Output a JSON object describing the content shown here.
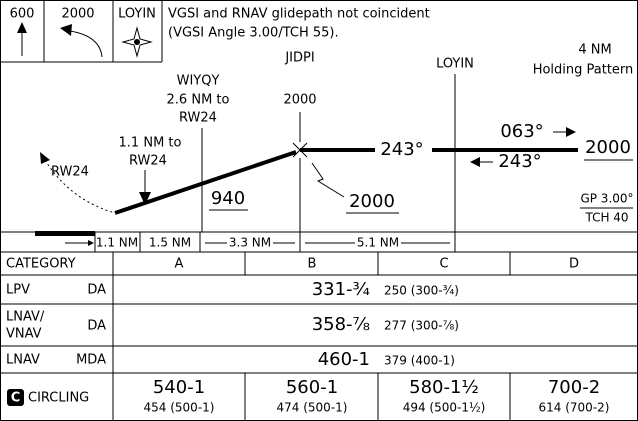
{
  "header": {
    "icons": [
      "600",
      "2000",
      "LOYIN"
    ],
    "note": [
      "VGSI and RNAV glidepath not coincident",
      "(VGSI Angle 3.00/TCH 55)."
    ]
  },
  "profile": {
    "wiyqy": [
      "WIYQY",
      "2.6 NM to",
      "RW24"
    ],
    "jidpi": [
      "JIDPI",
      "2000"
    ],
    "loyin": "LOYIN",
    "holding": [
      "4 NM",
      "Holding Pattern"
    ],
    "fix_to_rw": [
      "1.1 NM to",
      "RW24"
    ],
    "runway": "RW24",
    "inbound_course": "243°",
    "holding_outbound": "063°",
    "holding_inbound": "243°",
    "holding_altitude": "2000",
    "segment_altitude": "940",
    "fix_altitude": "2000",
    "glidepath": [
      "GP 3.00°",
      "TCH 40"
    ]
  },
  "distances": [
    "1.1 NM",
    "1.5 NM",
    "3.3 NM",
    "5.1 NM"
  ],
  "table": {
    "header": [
      "CATEGORY",
      "A",
      "B",
      "C",
      "D"
    ],
    "rows": [
      {
        "label": [
          "LPV",
          "DA"
        ],
        "minimum": "331-¾",
        "detail": "250 (300-¾)"
      },
      {
        "label": [
          "LNAV/",
          "VNAV",
          "DA"
        ],
        "minimum": "358-⅞",
        "detail": "277 (300-⅞)"
      },
      {
        "label": [
          "LNAV",
          "MDA"
        ],
        "minimum": "460-1",
        "detail": "379 (400-1)"
      }
    ],
    "circling": {
      "icon": "C",
      "label": "CIRCLING",
      "cells": [
        [
          "540-1",
          "454 (500-1)"
        ],
        [
          "560-1",
          "474 (500-1)"
        ],
        [
          "580-1½",
          "494 (500-1½)"
        ],
        [
          "700-2",
          "614 (700-2)"
        ]
      ]
    }
  }
}
